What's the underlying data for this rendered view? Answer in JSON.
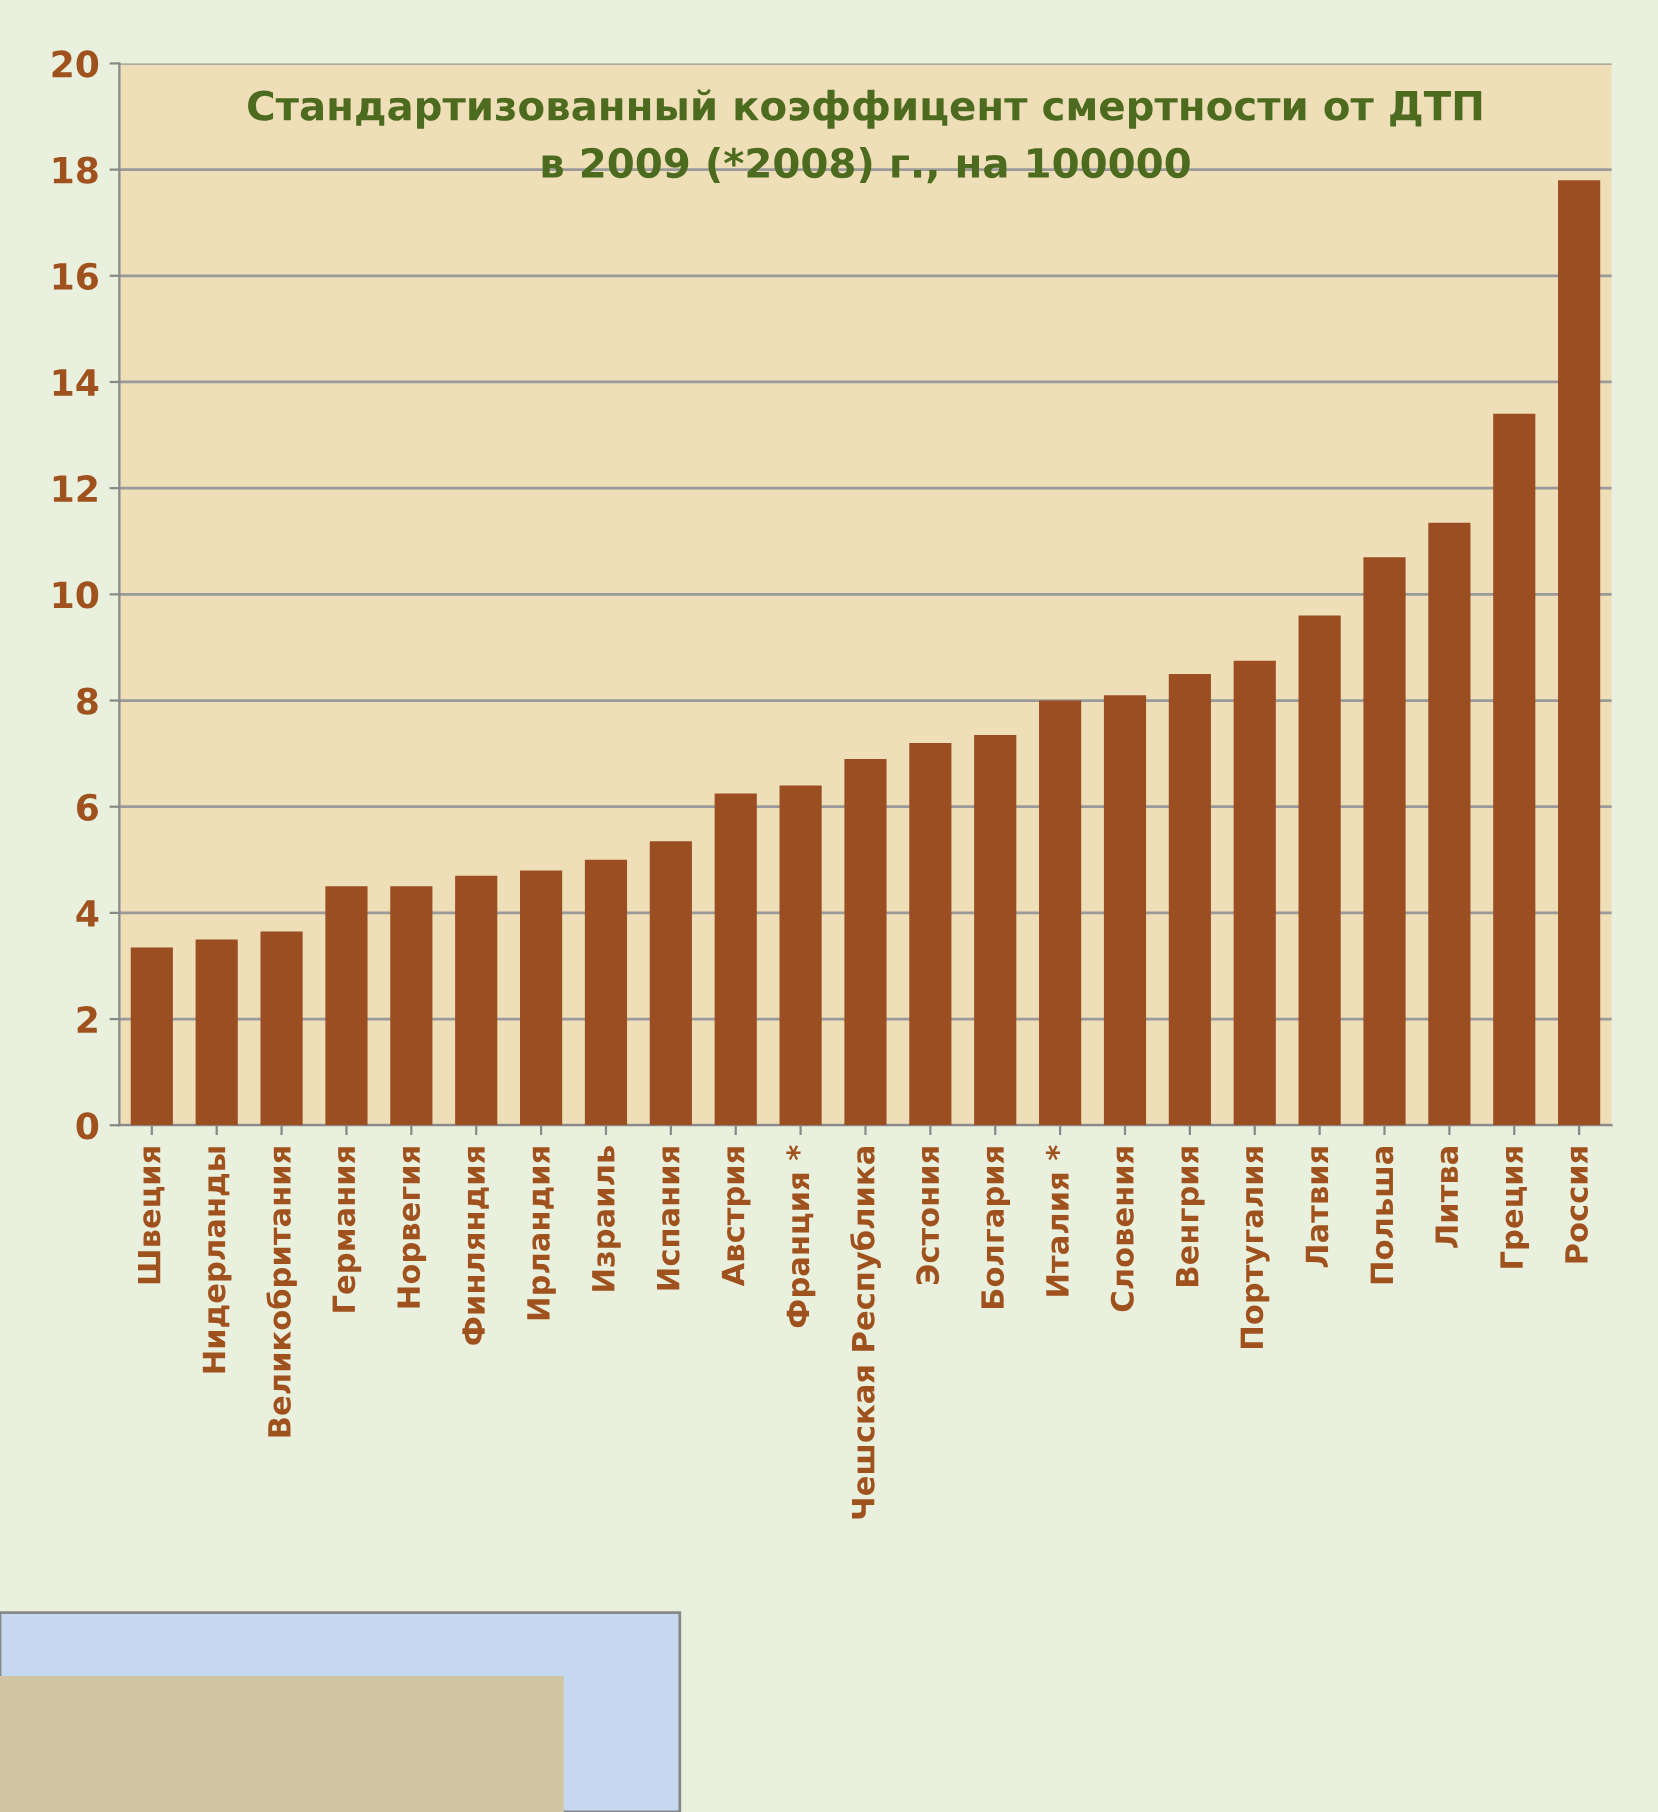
{
  "chart_data": {
    "type": "bar",
    "title": "Стандартизованный коэффицент смертности от ДТП\nв 2009 (*2008) г., на 100000",
    "categories": [
      "Швеция",
      "Нидерланды",
      "Великобритания",
      "Германия",
      "Норвегия",
      "Финляндия",
      "Ирландия",
      "Израиль",
      "Испания",
      "Австрия",
      "Франция *",
      "Чешская Республика",
      "Эстония",
      "Болгария",
      "Италия *",
      "Словения",
      "Венгрия",
      "Португалия",
      "Латвия",
      "Польша",
      "Литва",
      "Греция",
      "Россия"
    ],
    "values": [
      3.35,
      3.5,
      3.65,
      4.5,
      4.5,
      4.7,
      4.8,
      5.0,
      5.35,
      6.25,
      6.4,
      6.9,
      7.2,
      7.35,
      8.0,
      8.1,
      8.5,
      8.75,
      9.6,
      10.7,
      11.35,
      13.4,
      17.8
    ],
    "color": "#9a4e22",
    "ylim": [
      0,
      20
    ],
    "yticks": [
      0,
      2,
      4,
      6,
      8,
      10,
      12,
      14,
      16,
      18,
      20
    ],
    "grid": "y"
  }
}
